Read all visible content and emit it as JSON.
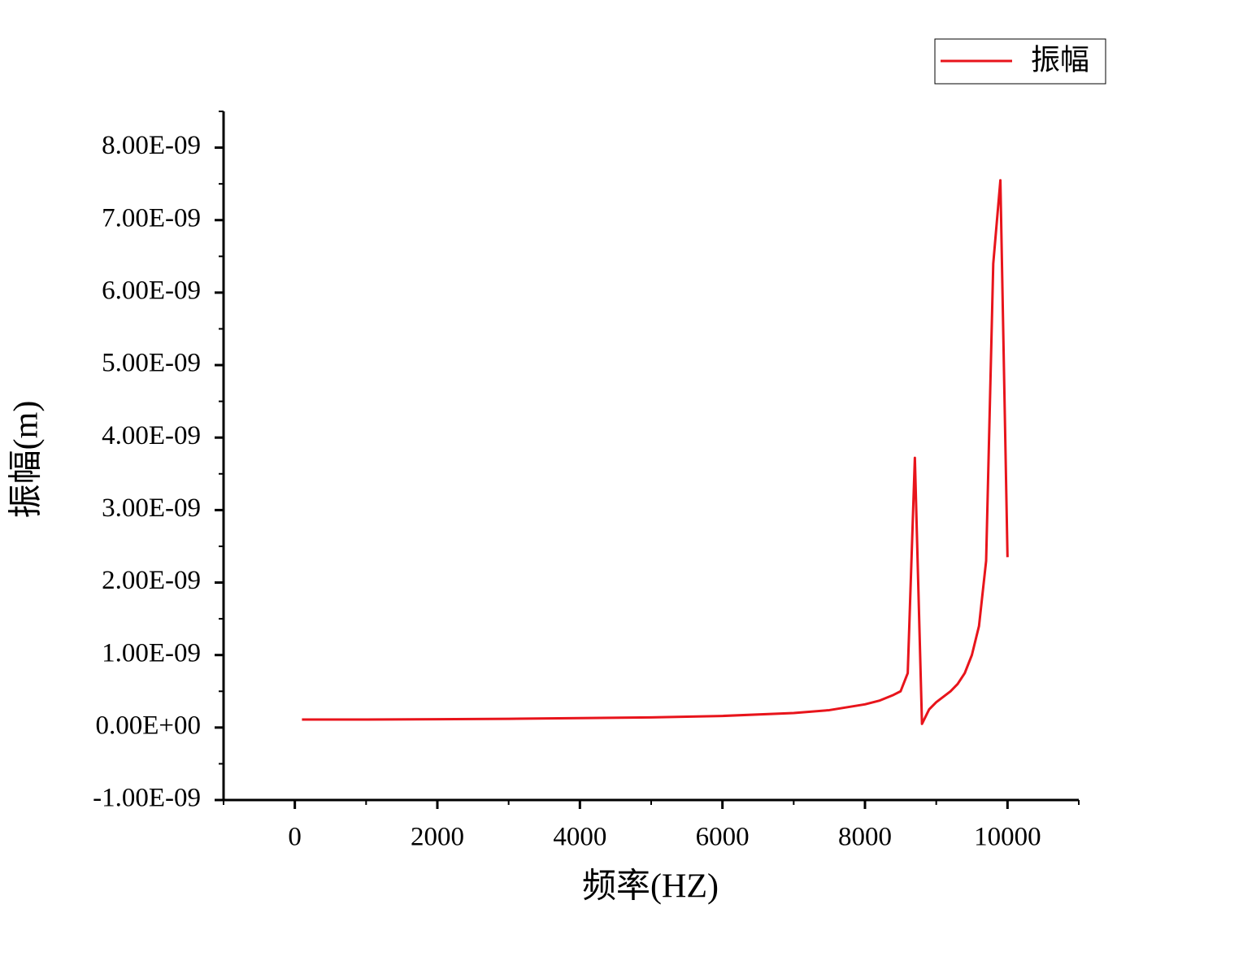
{
  "chart_data": {
    "type": "line",
    "xlabel": "频率(HZ)",
    "ylabel": "振幅(m)",
    "x": [
      100,
      1000,
      2000,
      3000,
      4000,
      5000,
      6000,
      7000,
      7500,
      8000,
      8200,
      8400,
      8500,
      8600,
      8700,
      8800,
      8900,
      9000,
      9200,
      9300,
      9400,
      9500,
      9600,
      9700,
      9800,
      9900,
      10000
    ],
    "series": [
      {
        "name": "振幅",
        "color": "#e8141b",
        "values": [
          1.1e-10,
          1.1e-10,
          1.15e-10,
          1.2e-10,
          1.3e-10,
          1.4e-10,
          1.6e-10,
          2e-10,
          2.4e-10,
          3.2e-10,
          3.7e-10,
          4.5e-10,
          5e-10,
          7.5e-10,
          3.72e-09,
          5e-11,
          2.5e-10,
          3.5e-10,
          5e-10,
          6e-10,
          7.5e-10,
          1e-09,
          1.4e-09,
          2.3e-09,
          6.4e-09,
          7.55e-09,
          2.35e-09
        ]
      }
    ],
    "xlim": [
      -1000,
      11000
    ],
    "xticks": [
      0,
      2000,
      4000,
      6000,
      8000,
      10000
    ],
    "xticks_minor": [
      -1000,
      1000,
      3000,
      5000,
      7000,
      9000,
      11000
    ],
    "ylim": [
      -1e-09,
      8.5e-09
    ],
    "yticks": [
      {
        "value": -1e-09,
        "label": "-1.00E-09"
      },
      {
        "value": 0,
        "label": "0.00E+00"
      },
      {
        "value": 1e-09,
        "label": "1.00E-09"
      },
      {
        "value": 2e-09,
        "label": "2.00E-09"
      },
      {
        "value": 3e-09,
        "label": "3.00E-09"
      },
      {
        "value": 4e-09,
        "label": "4.00E-09"
      },
      {
        "value": 5e-09,
        "label": "5.00E-09"
      },
      {
        "value": 6e-09,
        "label": "6.00E-09"
      },
      {
        "value": 7e-09,
        "label": "7.00E-09"
      },
      {
        "value": 8e-09,
        "label": "8.00E-09"
      }
    ],
    "yticks_minor": [
      -5e-10,
      5e-10,
      1.5e-09,
      2.5e-09,
      3.5e-09,
      4.5e-09,
      5.5e-09,
      6.5e-09,
      7.5e-09,
      8.5e-09
    ],
    "legend": "upper right",
    "grid": false
  }
}
